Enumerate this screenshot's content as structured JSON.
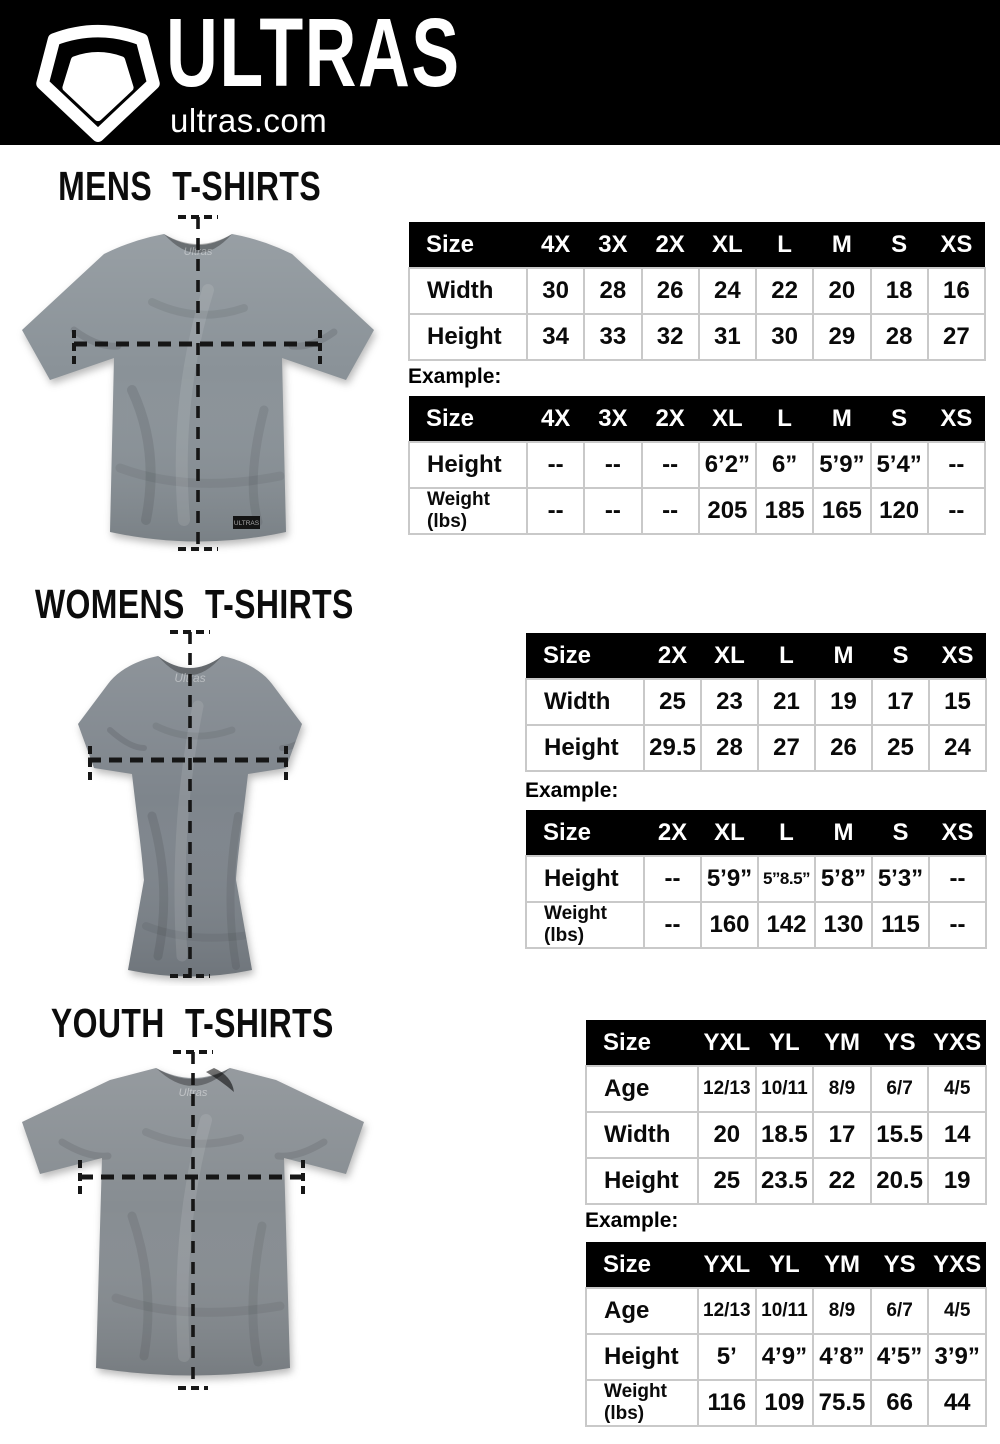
{
  "header": {
    "brand": "ULTRAS",
    "site": "ultras.com",
    "logo_icon": "pentagon-shield-icon",
    "bar_color": "#000000",
    "text_color": "#ffffff"
  },
  "table_colors": {
    "header_bg": "#000000",
    "header_text": "#ffffff",
    "grid_border": "#c9c9c9",
    "cell_text": "#0a0a0a"
  },
  "sections": [
    {
      "id": "mens",
      "title": "MENS T-SHIRTS",
      "shirt_color": "#8a9298",
      "example_label": "Example:",
      "size_table": {
        "columns": [
          "Size",
          "4X",
          "3X",
          "2X",
          "XL",
          "L",
          "M",
          "S",
          "XS"
        ],
        "rows": [
          {
            "label": "Width",
            "values": [
              "30",
              "28",
              "26",
              "24",
              "22",
              "20",
              "18",
              "16"
            ]
          },
          {
            "label": "Height",
            "values": [
              "34",
              "33",
              "32",
              "31",
              "30",
              "29",
              "28",
              "27"
            ]
          }
        ]
      },
      "example_table": {
        "columns": [
          "Size",
          "4X",
          "3X",
          "2X",
          "XL",
          "L",
          "M",
          "S",
          "XS"
        ],
        "rows": [
          {
            "label": "Height",
            "values": [
              "--",
              "--",
              "--",
              "6’2”",
              "6”",
              "5’9”",
              "5’4”",
              "--"
            ]
          },
          {
            "label": "Weight\n(lbs)",
            "values": [
              "--",
              "--",
              "--",
              "205",
              "185",
              "165",
              "120",
              "--"
            ]
          }
        ]
      }
    },
    {
      "id": "womens",
      "title": "WOMENS T-SHIRTS",
      "shirt_color": "#7e858c",
      "example_label": "Example:",
      "size_table": {
        "columns": [
          "Size",
          "2X",
          "XL",
          "L",
          "M",
          "S",
          "XS"
        ],
        "rows": [
          {
            "label": "Width",
            "values": [
              "25",
              "23",
              "21",
              "19",
              "17",
              "15"
            ]
          },
          {
            "label": "Height",
            "values": [
              "29.5",
              "28",
              "27",
              "26",
              "25",
              "24"
            ]
          }
        ]
      },
      "example_table": {
        "columns": [
          "Size",
          "2X",
          "XL",
          "L",
          "M",
          "S",
          "XS"
        ],
        "rows": [
          {
            "label": "Height",
            "values": [
              "--",
              "5’9”",
              "5”8.5”",
              "5’8”",
              "5’3”",
              "--"
            ]
          },
          {
            "label": "Weight\n(lbs)",
            "values": [
              "--",
              "160",
              "142",
              "130",
              "115",
              "--"
            ]
          }
        ]
      }
    },
    {
      "id": "youth",
      "title": "YOUTH T-SHIRTS",
      "shirt_color": "#878d92",
      "example_label": "Example:",
      "size_table": {
        "columns": [
          "Size",
          "YXL",
          "YL",
          "YM",
          "YS",
          "YXS"
        ],
        "rows": [
          {
            "label": "Age",
            "values": [
              "12/13",
              "10/11",
              "8/9",
              "6/7",
              "4/5"
            ]
          },
          {
            "label": "Width",
            "values": [
              "20",
              "18.5",
              "17",
              "15.5",
              "14"
            ]
          },
          {
            "label": "Height",
            "values": [
              "25",
              "23.5",
              "22",
              "20.5",
              "19"
            ]
          }
        ]
      },
      "example_table": {
        "columns": [
          "Size",
          "YXL",
          "YL",
          "YM",
          "YS",
          "YXS"
        ],
        "rows": [
          {
            "label": "Age",
            "values": [
              "12/13",
              "10/11",
              "8/9",
              "6/7",
              "4/5"
            ]
          },
          {
            "label": "Height",
            "values": [
              "5’",
              "4’9”",
              "4’8”",
              "4’5”",
              "3’9”"
            ]
          },
          {
            "label": "Weight\n(lbs)",
            "values": [
              "116",
              "109",
              "75.5",
              "66",
              "44"
            ]
          }
        ]
      }
    }
  ]
}
